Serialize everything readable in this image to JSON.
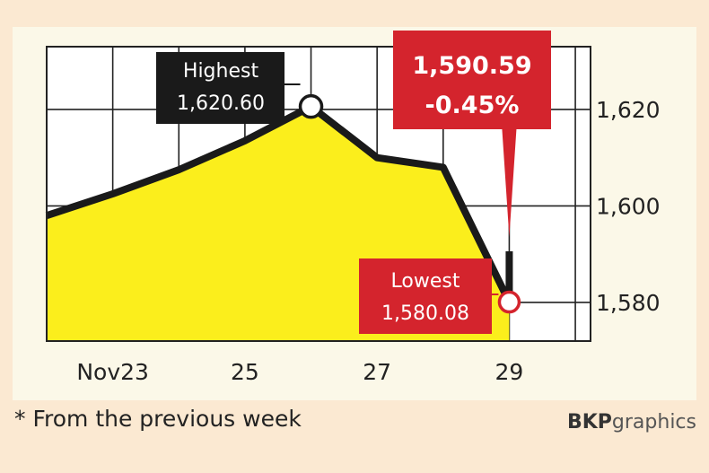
{
  "chart_data": {
    "type": "area",
    "x": [
      "Nov 22",
      "Nov 23",
      "Nov 24",
      "Nov 25",
      "Nov 26",
      "Nov 27",
      "Nov 28",
      "Nov 29",
      "Nov 29"
    ],
    "y": [
      1598.0,
      1602.5,
      1607.5,
      1613.5,
      1620.6,
      1610.0,
      1608.0,
      1580.08,
      1590.59
    ],
    "x_tick_labels": [
      "Nov23",
      "25",
      "27",
      "29"
    ],
    "y_tick_labels": [
      "1,620",
      "1,600",
      "1,580"
    ],
    "ylim": [
      1572,
      1633
    ],
    "grid": true,
    "colors": {
      "fill": "#fbee1c",
      "line": "#1a1a1a",
      "highlight": "#d4242d",
      "label_bg": "#1a1a1a"
    },
    "annotations": {
      "highest": {
        "label": "Highest",
        "value": "1,620.60"
      },
      "lowest": {
        "label": "Lowest",
        "value": "1,580.08"
      },
      "close": {
        "value": "1,590.59",
        "change": "-0.45%"
      }
    }
  },
  "footnote": "* From the previous week",
  "credit": {
    "bold": "BKP",
    "light": "graphics"
  }
}
